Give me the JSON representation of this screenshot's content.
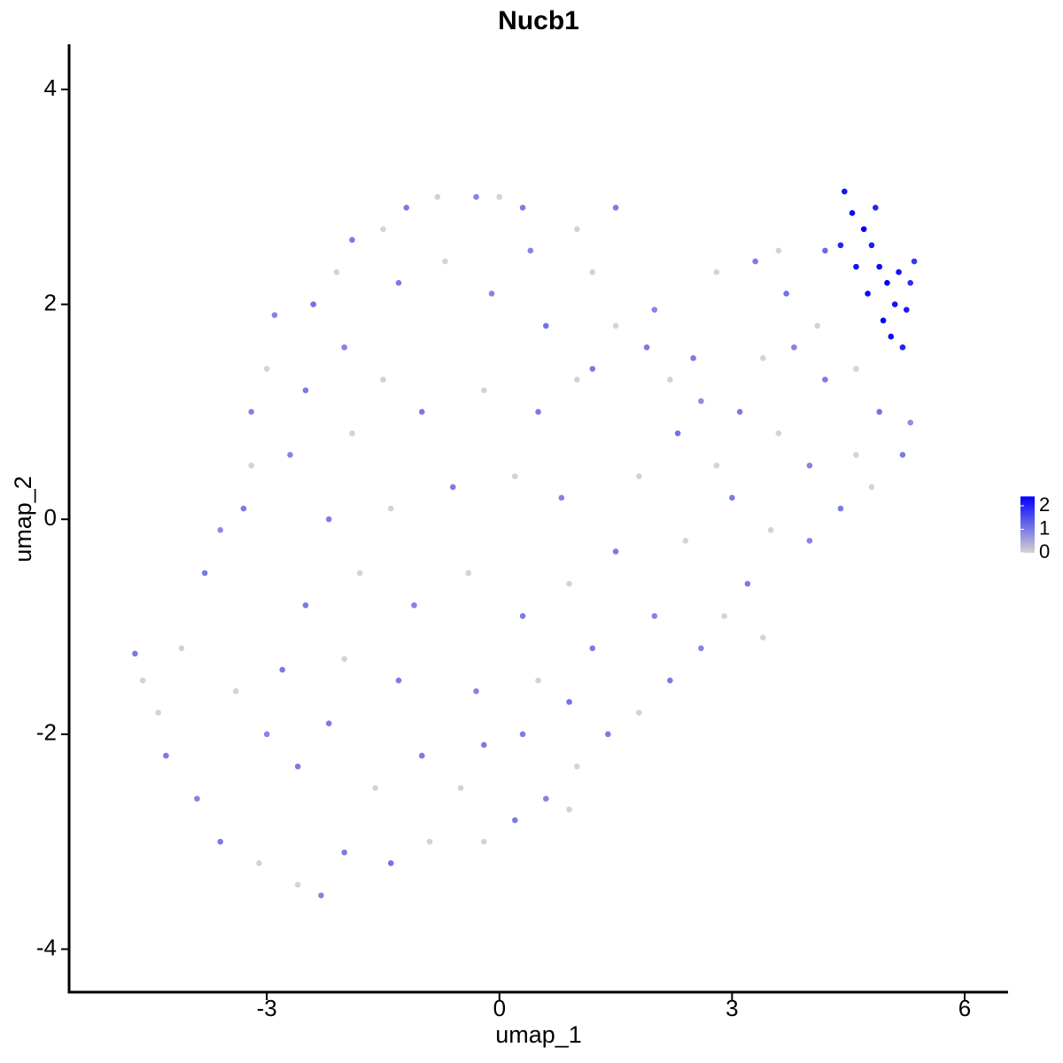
{
  "chart_data": {
    "type": "scatter",
    "title": "Nucb1",
    "x_label": "umap_1",
    "y_label": "umap_2",
    "xlim": [
      -5.55,
      6.56
    ],
    "ylim": [
      -4.4,
      4.42
    ],
    "xticks": [
      -3,
      0,
      3,
      6
    ],
    "yticks": [
      -4,
      -2,
      0,
      2,
      4
    ],
    "color_low": "#d3d3d3",
    "color_high": "#0000ff",
    "clim": [
      0,
      2.4
    ],
    "legend_ticks": [
      0,
      1,
      2
    ],
    "legend_position": "right",
    "x": [
      4.45,
      4.55,
      4.7,
      4.8,
      4.9,
      5.0,
      5.1,
      4.95,
      5.05,
      5.2,
      5.3,
      5.35,
      4.6,
      4.4,
      4.75,
      5.15,
      4.85,
      5.25,
      4.2,
      3.6,
      3.3,
      2.8,
      3.7,
      4.1,
      3.8,
      3.4,
      4.2,
      4.6,
      4.9,
      5.3,
      5.2,
      4.6,
      4.0,
      3.6,
      3.1,
      2.6,
      2.2,
      1.9,
      2.0,
      1.5,
      1.2,
      2.3,
      2.8,
      3.0,
      3.5,
      4.0,
      4.4,
      4.8,
      3.2,
      2.9,
      2.6,
      3.4,
      2.2,
      1.8,
      1.4,
      0.9,
      1.0,
      0.6,
      0.9,
      0.0,
      0.3,
      -0.3,
      -0.8,
      -1.2,
      -1.5,
      -1.9,
      -2.1,
      -2.4,
      -2.9,
      -3.0,
      -3.2,
      -3.2,
      -3.3,
      -3.6,
      -3.8,
      -4.1,
      -4.7,
      -4.6,
      -4.4,
      -4.3,
      -3.9,
      -3.6,
      -3.1,
      -2.6,
      -2.3,
      -2.0,
      -1.4,
      -0.9,
      -0.2,
      0.2,
      -2.6,
      -3.0,
      -2.2,
      -1.6,
      -1.0,
      -0.5,
      0.3,
      -0.3,
      -1.3,
      -2.0,
      -2.8,
      -3.4,
      -2.5,
      -1.8,
      -1.1,
      -0.4,
      0.3,
      0.9,
      1.5,
      0.8,
      0.2,
      -0.6,
      -1.4,
      -2.2,
      -2.7,
      -1.9,
      -1.0,
      -0.2,
      0.5,
      1.0,
      0.6,
      -0.1,
      -0.7,
      -1.3,
      -2.0,
      -1.5,
      -2.5,
      0.4,
      1.0,
      1.5,
      1.2,
      2.5,
      1.8,
      1.2,
      0.5,
      -0.2,
      2.0,
      2.4
    ],
    "y": [
      3.05,
      2.85,
      2.7,
      2.55,
      2.35,
      2.2,
      2.0,
      1.85,
      1.7,
      1.6,
      2.2,
      2.4,
      2.35,
      2.55,
      2.1,
      2.3,
      2.9,
      1.95,
      2.5,
      2.5,
      2.4,
      2.3,
      2.1,
      1.8,
      1.6,
      1.5,
      1.3,
      1.4,
      1.0,
      0.9,
      0.6,
      0.6,
      0.5,
      0.8,
      1.0,
      1.1,
      1.3,
      1.6,
      1.95,
      1.8,
      1.4,
      0.8,
      0.5,
      0.2,
      -0.1,
      -0.2,
      0.1,
      0.3,
      -0.6,
      -0.9,
      -1.2,
      -1.1,
      -1.5,
      -1.8,
      -2.0,
      -1.7,
      -2.3,
      -2.6,
      -2.7,
      3.0,
      2.9,
      3.0,
      3.0,
      2.9,
      2.7,
      2.6,
      2.3,
      2.0,
      1.9,
      1.4,
      1.0,
      0.5,
      0.1,
      -0.1,
      -0.5,
      -1.2,
      -1.25,
      -1.5,
      -1.8,
      -2.2,
      -2.6,
      -3.0,
      -3.2,
      -3.4,
      -3.5,
      -3.1,
      -3.2,
      -3.0,
      -3.0,
      -2.8,
      -2.3,
      -2.0,
      -1.9,
      -2.5,
      -2.2,
      -2.5,
      -2.0,
      -1.6,
      -1.5,
      -1.3,
      -1.4,
      -1.6,
      -0.8,
      -0.5,
      -0.8,
      -0.5,
      -0.9,
      -0.6,
      -0.3,
      0.2,
      0.4,
      0.3,
      0.1,
      0.0,
      0.6,
      0.8,
      1.0,
      1.2,
      1.0,
      1.3,
      1.8,
      2.1,
      2.4,
      2.2,
      1.6,
      1.3,
      1.2,
      2.5,
      2.7,
      2.9,
      2.3,
      1.5,
      0.4,
      -1.2,
      -1.5,
      -2.1,
      -0.9,
      -0.2
    ],
    "values": [
      2.2,
      2.3,
      2.4,
      2.1,
      2.3,
      2.4,
      2.2,
      2.4,
      2.3,
      2.0,
      1.9,
      1.8,
      2.2,
      2.0,
      2.3,
      2.2,
      2.0,
      2.1,
      1.2,
      0,
      1.0,
      0,
      1.1,
      0,
      0.9,
      0,
      1.0,
      0,
      1.1,
      0.8,
      1.0,
      0,
      0.9,
      0,
      1.0,
      0.8,
      0,
      1.0,
      0.9,
      0,
      1.0,
      1.1,
      0,
      1.0,
      0,
      0.9,
      1.0,
      0,
      1.0,
      0,
      0.9,
      0,
      1.0,
      0,
      1.0,
      1.1,
      0,
      0.9,
      0,
      0,
      1.0,
      0.9,
      0,
      1.0,
      0,
      1.0,
      0,
      1.1,
      0.9,
      0,
      0.9,
      0,
      1.0,
      0.8,
      1.0,
      0,
      1.0,
      0,
      0,
      1.0,
      0.9,
      1.0,
      0,
      0,
      0.9,
      1.0,
      1.1,
      0,
      0,
      1.0,
      1.0,
      0.9,
      1.0,
      0,
      1.0,
      0,
      1.0,
      0.9,
      1.0,
      0,
      1.0,
      0,
      1.0,
      0,
      0.9,
      0,
      1.0,
      0,
      1.0,
      0.9,
      0,
      1.0,
      0,
      1.0,
      0.9,
      0,
      1.0,
      0,
      1.0,
      0,
      1.1,
      0.9,
      0,
      1.0,
      0.9,
      0,
      1.0,
      0.9,
      0,
      1.0,
      0,
      1.0,
      0,
      1.0,
      0,
      1.0,
      0.9,
      0
    ]
  }
}
